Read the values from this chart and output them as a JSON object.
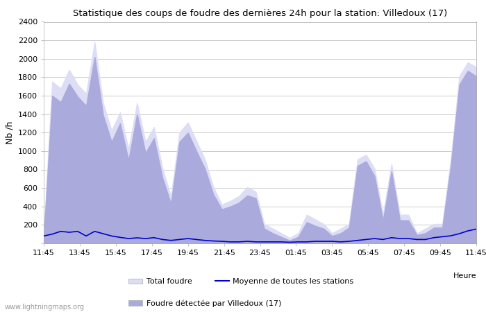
{
  "title": "Statistique des coups de foudre des dernières 24h pour la station: Villedoux (17)",
  "ylabel": "Nb /h",
  "xlabel": "Heure",
  "watermark": "www.lightningmaps.org",
  "ylim": [
    0,
    2400
  ],
  "yticks": [
    0,
    200,
    400,
    600,
    800,
    1000,
    1200,
    1400,
    1600,
    1800,
    2000,
    2200,
    2400
  ],
  "xtick_labels": [
    "11:45",
    "13:45",
    "15:45",
    "17:45",
    "19:45",
    "21:45",
    "23:45",
    "01:45",
    "03:45",
    "05:45",
    "07:45",
    "09:45",
    "11:45"
  ],
  "color_total": "#ddddf5",
  "color_detected": "#aaaadd",
  "color_mean": "#0000cc",
  "bg_color": "#ffffff",
  "grid_color": "#cccccc",
  "total_foudre": [
    100,
    1750,
    1680,
    1880,
    1720,
    1620,
    2180,
    1520,
    1220,
    1420,
    1020,
    1520,
    1100,
    1260,
    810,
    510,
    1200,
    1310,
    1110,
    910,
    610,
    420,
    460,
    510,
    610,
    560,
    210,
    160,
    110,
    60,
    110,
    310,
    260,
    210,
    110,
    160,
    210,
    910,
    960,
    810,
    310,
    860,
    310,
    310,
    110,
    160,
    210,
    210,
    910,
    1810,
    1960,
    1910
  ],
  "detected_foudre": [
    60,
    1600,
    1530,
    1730,
    1590,
    1490,
    2020,
    1390,
    1100,
    1300,
    900,
    1400,
    980,
    1140,
    710,
    430,
    1100,
    1200,
    1000,
    810,
    530,
    370,
    400,
    440,
    520,
    490,
    160,
    110,
    70,
    30,
    70,
    230,
    190,
    160,
    80,
    110,
    170,
    840,
    890,
    730,
    250,
    780,
    250,
    250,
    90,
    110,
    170,
    170,
    840,
    1720,
    1870,
    1810
  ],
  "mean_line": [
    80,
    100,
    130,
    120,
    130,
    80,
    130,
    105,
    80,
    65,
    52,
    60,
    52,
    62,
    42,
    32,
    42,
    52,
    42,
    32,
    26,
    22,
    16,
    16,
    22,
    16,
    16,
    16,
    16,
    12,
    16,
    16,
    22,
    22,
    22,
    16,
    22,
    32,
    42,
    52,
    42,
    62,
    52,
    52,
    42,
    42,
    62,
    72,
    82,
    105,
    135,
    155
  ],
  "n_points": 52
}
